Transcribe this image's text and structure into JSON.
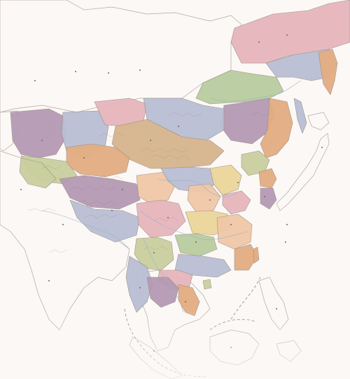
{
  "map": {
    "colors": {
      "sea": "#fbf8f6",
      "land_outer": "#f3e7cc",
      "siberia_plain": "#efe2c6",
      "lake": "#d8e9f2",
      "purple": "#b59ab4",
      "pink": "#e6b6bd",
      "blue_grey": "#b9bfd4",
      "orange": "#e3ad82",
      "tan": "#d7b58e",
      "olive": "#c9cf9e",
      "green": "#b9cc9f",
      "yellow": "#ecd79b",
      "peach": "#f0c8a6"
    }
  }
}
